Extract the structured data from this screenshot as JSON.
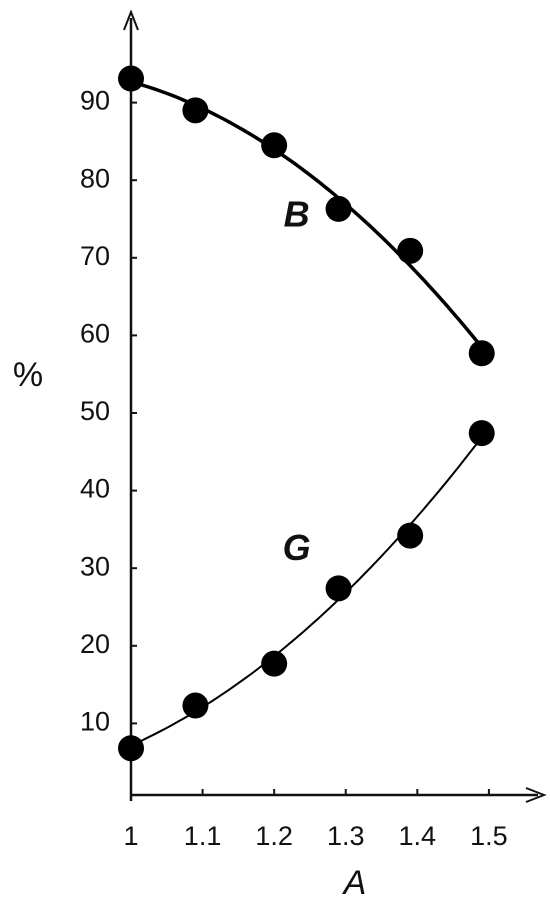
{
  "chart_data": {
    "type": "scatter",
    "x_label": "A",
    "y_label": "%",
    "series": [
      {
        "name": "B",
        "color": "#000000",
        "x": [
          1,
          1.09,
          1.2,
          1.29,
          1.39,
          1.49
        ],
        "values": [
          93.1,
          89.0,
          84.5,
          76.3,
          70.9,
          57.7
        ]
      },
      {
        "name": "G",
        "color": "#000000",
        "x": [
          1,
          1.09,
          1.2,
          1.29,
          1.39,
          1.49
        ],
        "values": [
          6.8,
          12.3,
          17.7,
          27.4,
          34.2,
          47.4
        ]
      }
    ],
    "xlim": [
      1,
      1.57
    ],
    "xticks": [
      1,
      1.1,
      1.2,
      1.3,
      1.4,
      1.5
    ],
    "ylim": [
      0,
      100
    ],
    "yticks": [
      10,
      20,
      30,
      40,
      50,
      60,
      70,
      80,
      90
    ],
    "fit_curves": true
  }
}
